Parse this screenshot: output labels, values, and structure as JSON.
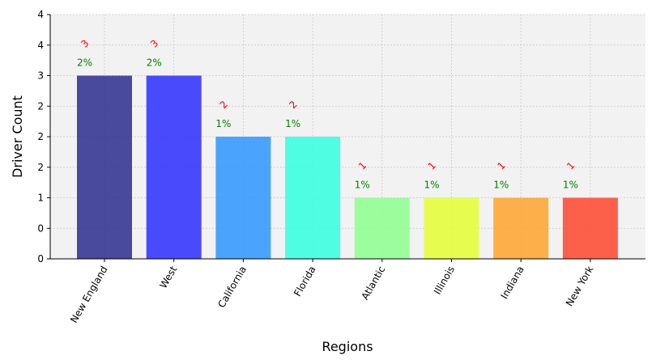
{
  "chart_data": {
    "type": "bar",
    "categories": [
      "New England",
      "West",
      "California",
      "Florida",
      "Atlantic",
      "Illinois",
      "Indiana",
      "New York"
    ],
    "values": [
      3,
      3,
      2,
      2,
      1,
      1,
      1,
      1
    ],
    "value_labels": [
      "3",
      "3",
      "2",
      "2",
      "1",
      "1",
      "1",
      "1"
    ],
    "percent_labels": [
      "2%",
      "2%",
      "1%",
      "1%",
      "1%",
      "1%",
      "1%",
      "1%"
    ],
    "colors": [
      "#2b2b8f",
      "#2d2dff",
      "#2d96ff",
      "#32ffdf",
      "#8dff8d",
      "#e4ff32",
      "#ffa32d",
      "#ff462d"
    ],
    "bar_alpha": 0.85,
    "xlabel": "Regions",
    "ylabel": "Driver Count",
    "y_ticks": [
      0,
      0.5,
      1,
      1.5,
      2,
      2.5,
      3,
      3.5,
      4
    ],
    "y_tick_labels": [
      "0",
      "0",
      "1",
      "2",
      "2",
      "2",
      "3",
      "4",
      "4"
    ],
    "ylim": [
      0,
      4
    ],
    "grid": true,
    "plot_background": "#f2f2f2",
    "value_label_color": "#ff0000",
    "percent_label_color": "#008000"
  }
}
